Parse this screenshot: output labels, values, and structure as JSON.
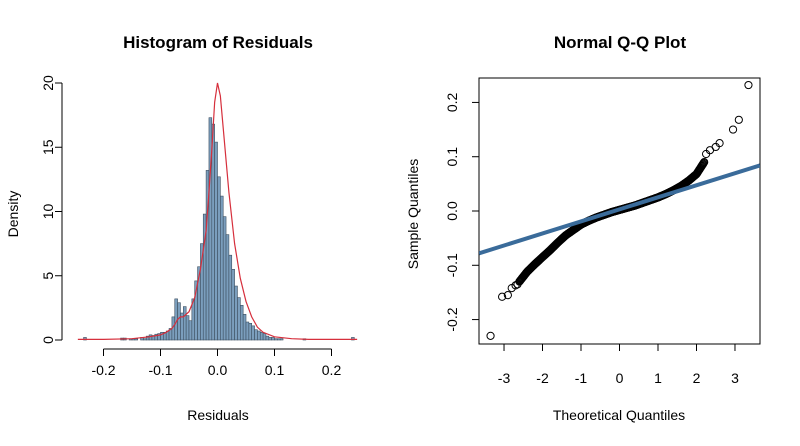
{
  "chart_data": [
    {
      "type": "bar",
      "subtype": "histogram-with-density",
      "title": "Histogram of Residuals",
      "xlabel": "Residuals",
      "ylabel": "Density",
      "xlim": [
        -0.25,
        0.25
      ],
      "ylim": [
        0,
        20
      ],
      "xticks": [
        -0.2,
        -0.1,
        0.0,
        0.1,
        0.2
      ],
      "xtick_labels": [
        "-0.2",
        "-0.1",
        "0.0",
        "0.1",
        "0.2"
      ],
      "yticks": [
        0,
        5,
        10,
        15,
        20
      ],
      "ytick_labels": [
        "0",
        "5",
        "10",
        "15",
        "20"
      ],
      "bin_width": 0.005,
      "bin_start": -0.235,
      "bar_fill": "#7b9ebd",
      "bar_stroke": "#3d4f60",
      "density_color": "#d62f3c",
      "bin_values": [
        0.2,
        0,
        0,
        0,
        0,
        0,
        0,
        0,
        0,
        0,
        0,
        0,
        0,
        0.15,
        0.15,
        0,
        0.1,
        0.1,
        0.1,
        0,
        0.2,
        0.1,
        0.3,
        0.4,
        0.35,
        0.45,
        0.5,
        0.6,
        0.6,
        0.7,
        0.9,
        1.8,
        3.2,
        2.9,
        2.1,
        2.6,
        1.9,
        1.5,
        3.2,
        4.6,
        5.7,
        7.5,
        9.8,
        13.2,
        17.3,
        16.8,
        15.4,
        12.7,
        11.2,
        9.6,
        8.2,
        6.6,
        5.5,
        4.2,
        3.3,
        2.7,
        2.0,
        1.4,
        1.3,
        1.1,
        0.8,
        0.7,
        0.6,
        0.5,
        0.3,
        0.2,
        0.2,
        0.1,
        0.1,
        0.1,
        0,
        0,
        0,
        0,
        0,
        0,
        0,
        0.1,
        0,
        0,
        0,
        0,
        0,
        0,
        0,
        0,
        0,
        0,
        0,
        0,
        0,
        0,
        0,
        0,
        0.2,
        0
      ],
      "density_curve": {
        "x": [
          -0.245,
          -0.2,
          -0.15,
          -0.12,
          -0.1,
          -0.09,
          -0.08,
          -0.075,
          -0.07,
          -0.065,
          -0.06,
          -0.05,
          -0.04,
          -0.03,
          -0.02,
          -0.015,
          -0.01,
          -0.005,
          0,
          0.005,
          0.01,
          0.02,
          0.03,
          0.04,
          0.05,
          0.06,
          0.07,
          0.08,
          0.1,
          0.13,
          0.16,
          0.2,
          0.245
        ],
        "y": [
          0.05,
          0.05,
          0.1,
          0.25,
          0.4,
          0.6,
          0.9,
          1.2,
          1.6,
          1.8,
          1.8,
          2.2,
          3.3,
          5.5,
          8.5,
          11.5,
          14.8,
          18.5,
          20.0,
          19.0,
          16.5,
          11.5,
          7.5,
          4.8,
          3.0,
          1.8,
          1.0,
          0.6,
          0.25,
          0.1,
          0.05,
          0.05,
          0.05
        ]
      }
    },
    {
      "type": "scatter",
      "subtype": "qq-plot",
      "title": "Normal Q-Q Plot",
      "xlabel": "Theoretical Quantiles",
      "ylabel": "Sample Quantiles",
      "xlim": [
        -3.65,
        3.65
      ],
      "ylim": [
        -0.245,
        0.245
      ],
      "xticks": [
        -3,
        -2,
        -1,
        0,
        1,
        2,
        3
      ],
      "xtick_labels": [
        "-3",
        "-2",
        "-1",
        "0",
        "1",
        "2",
        "3"
      ],
      "yticks": [
        -0.2,
        -0.1,
        0.0,
        0.1,
        0.2
      ],
      "ytick_labels": [
        "-0.2",
        "-0.1",
        "0.0",
        "0.1",
        "0.2"
      ],
      "line_color": "#3a6b9a",
      "reference_line": {
        "slope": 0.0222,
        "intercept": 0.003
      },
      "extreme_points": [
        {
          "x": -3.35,
          "y": -0.23
        },
        {
          "x": -3.05,
          "y": -0.158
        },
        {
          "x": -2.9,
          "y": -0.155
        },
        {
          "x": -2.8,
          "y": -0.142
        },
        {
          "x": -2.7,
          "y": -0.137
        },
        {
          "x": -2.65,
          "y": -0.135
        },
        {
          "x": 2.25,
          "y": 0.105
        },
        {
          "x": 2.35,
          "y": 0.112
        },
        {
          "x": 2.5,
          "y": 0.118
        },
        {
          "x": 2.6,
          "y": 0.125
        },
        {
          "x": 2.95,
          "y": 0.15
        },
        {
          "x": 3.1,
          "y": 0.168
        },
        {
          "x": 3.35,
          "y": 0.232
        }
      ],
      "quantile_curve": {
        "x": [
          -2.6,
          -2.4,
          -2.2,
          -2.0,
          -1.8,
          -1.6,
          -1.4,
          -1.2,
          -1.0,
          -0.8,
          -0.6,
          -0.4,
          -0.2,
          0,
          0.2,
          0.4,
          0.6,
          0.8,
          1.0,
          1.2,
          1.4,
          1.6,
          1.8,
          2.0,
          2.2
        ],
        "y": [
          -0.13,
          -0.112,
          -0.098,
          -0.085,
          -0.072,
          -0.058,
          -0.045,
          -0.035,
          -0.025,
          -0.018,
          -0.012,
          -0.007,
          -0.002,
          0.002,
          0.006,
          0.01,
          0.015,
          0.02,
          0.025,
          0.031,
          0.038,
          0.046,
          0.056,
          0.068,
          0.09
        ]
      }
    }
  ]
}
